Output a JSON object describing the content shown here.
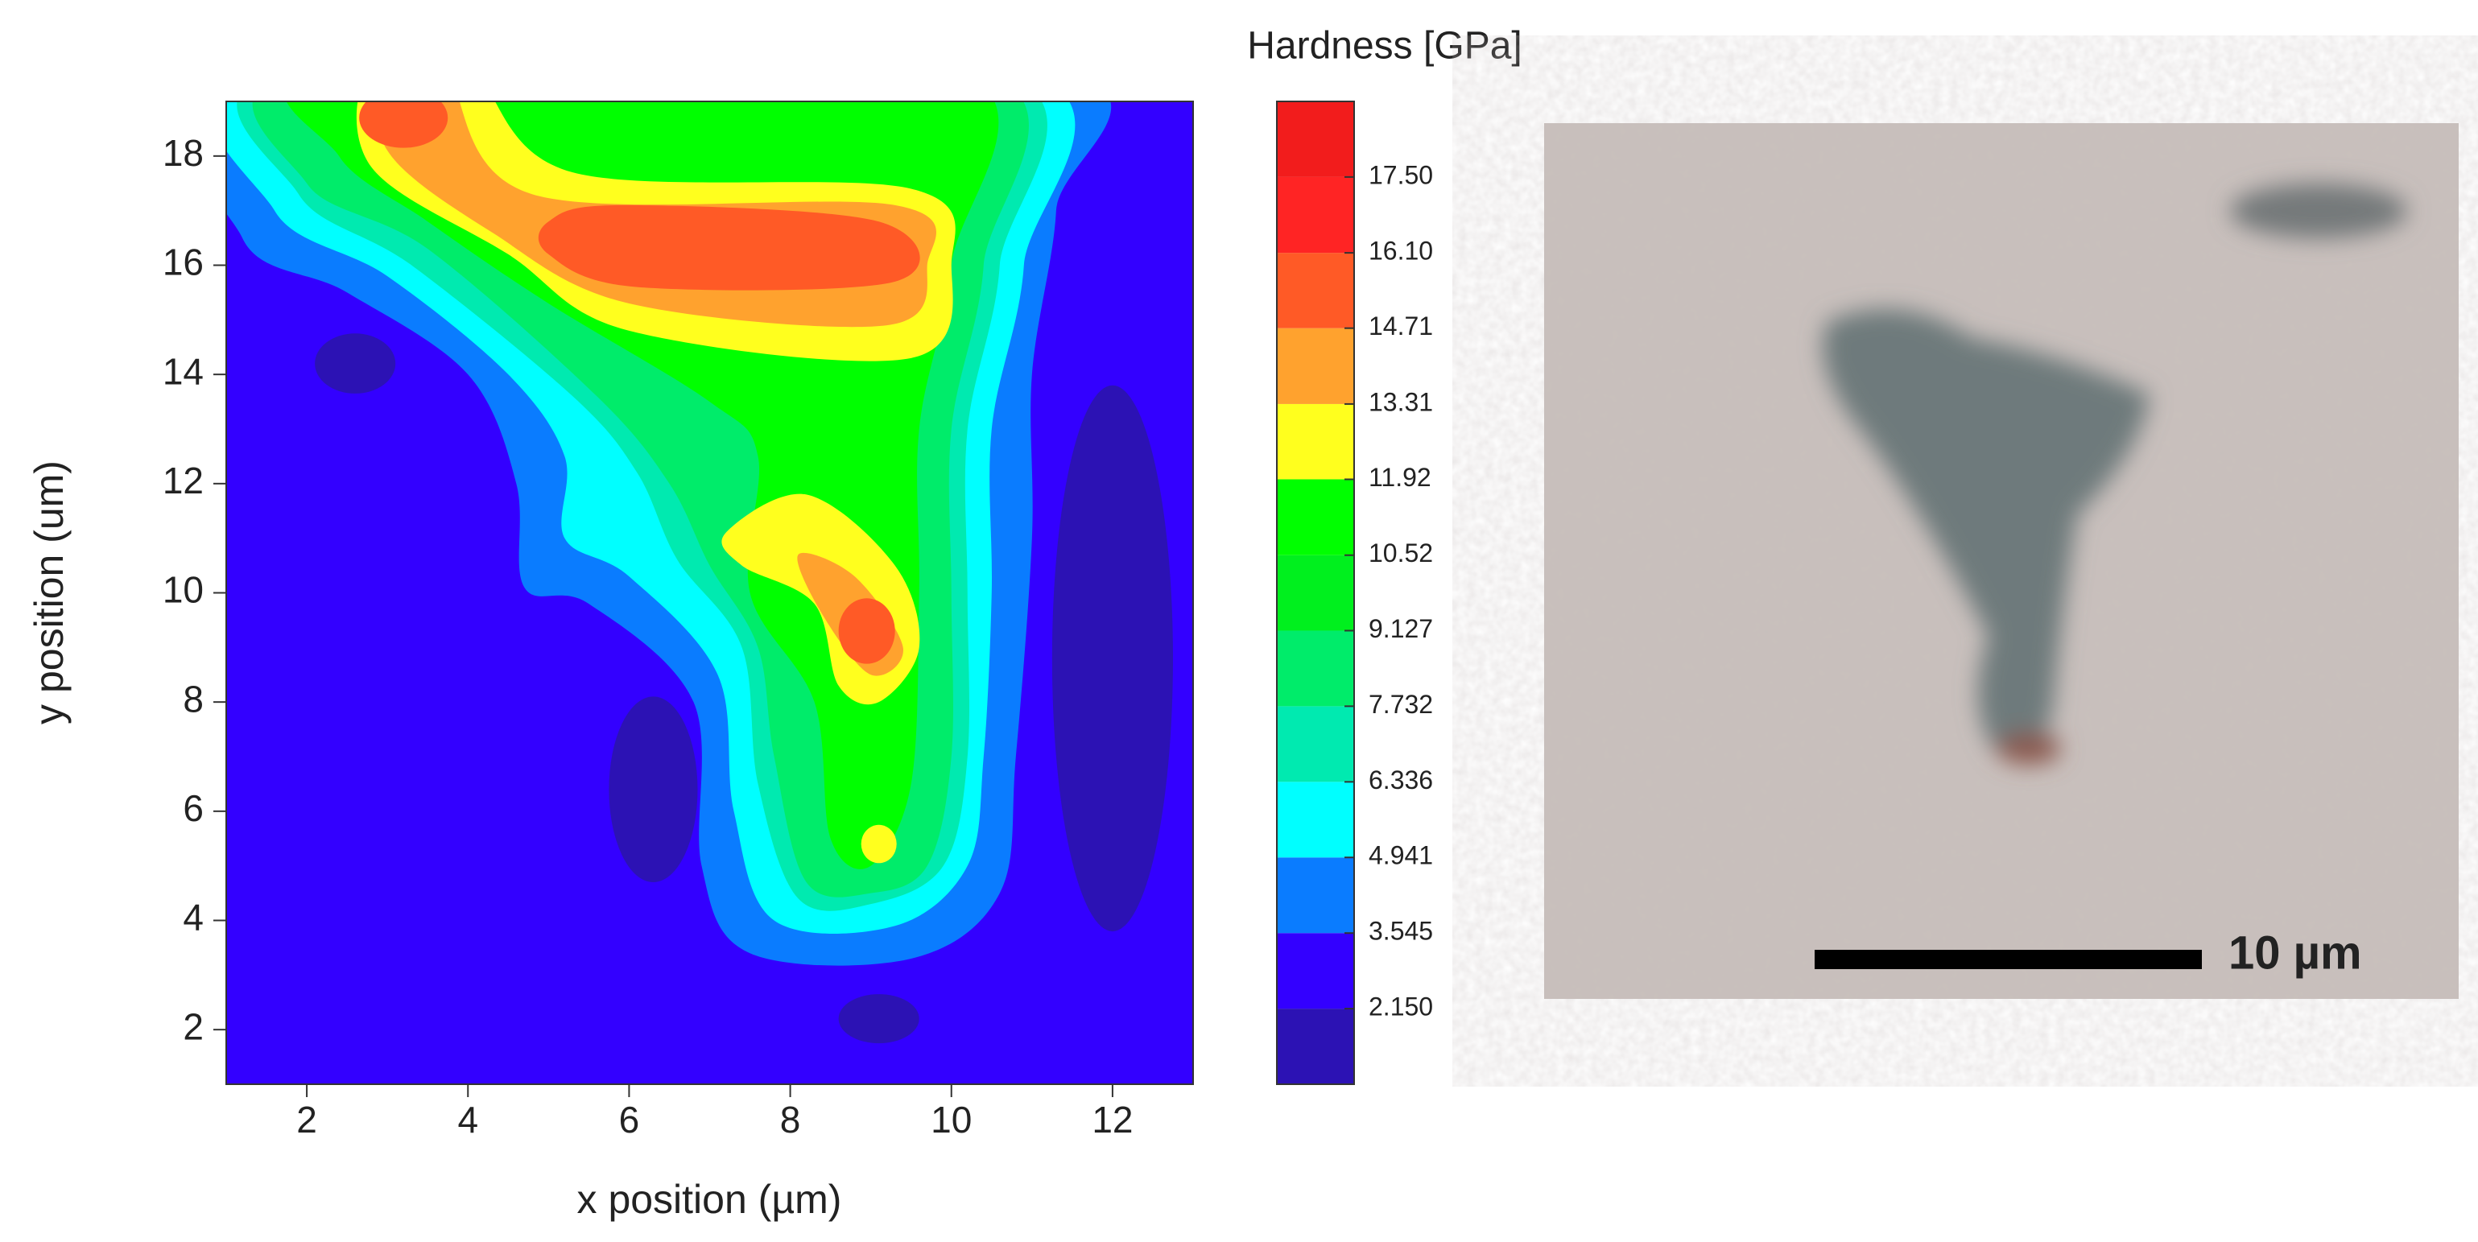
{
  "chart_data": {
    "type": "contour",
    "xlabel": "x position (µm)",
    "ylabel": "y position (um)",
    "xlim": [
      1,
      13
    ],
    "ylim": [
      1,
      19
    ],
    "xticks": [
      2,
      4,
      6,
      8,
      10,
      12
    ],
    "yticks": [
      2,
      4,
      6,
      8,
      10,
      12,
      14,
      16,
      18
    ],
    "colorbar": {
      "title": "Hardness [GPa]",
      "clim": [
        0.755,
        18.895
      ],
      "ticks": [
        {
          "value": 2.15,
          "label": "2.150"
        },
        3.545,
        4.941,
        6.336,
        7.732,
        9.127,
        10.52,
        11.92,
        13.31,
        14.71,
        {
          "value": 16.1,
          "label": "16.10"
        },
        {
          "value": 17.5,
          "label": "17.50"
        }
      ],
      "colors": [
        "#2c12b4",
        "#3300ff",
        "#0a7cff",
        "#00ffff",
        "#00eab0",
        "#00ec6a",
        "#00f01e",
        "#00ff00",
        "#ffff1e",
        "#ffa22e",
        "#ff5a26",
        "#ff2424",
        "#f21c1c"
      ]
    }
  },
  "image": {
    "scale_bar_label": "10 µm"
  }
}
